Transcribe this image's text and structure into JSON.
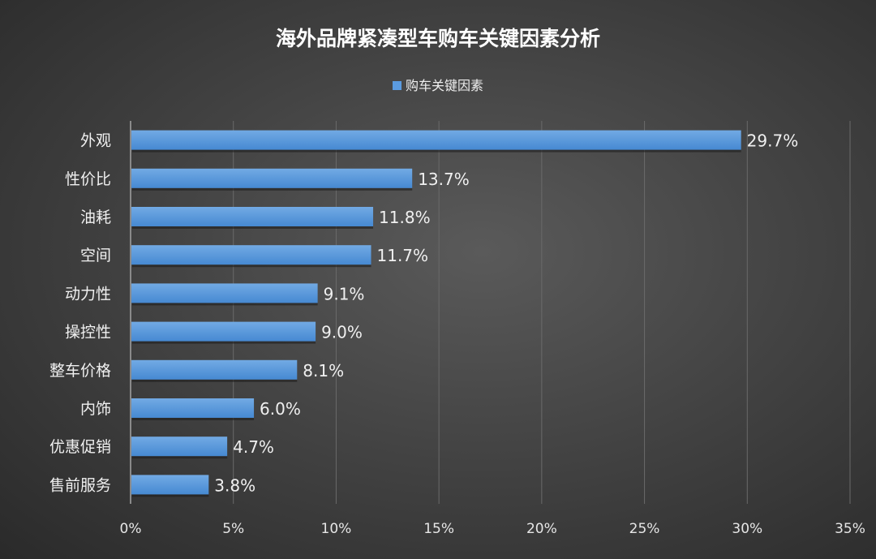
{
  "chart_data": {
    "type": "bar",
    "orientation": "horizontal",
    "title": "海外品牌紧凑型车购车关键因素分析",
    "legend": [
      "购车关键因素"
    ],
    "legend_position": "top",
    "categories": [
      "外观",
      "性价比",
      "油耗",
      "空间",
      "动力性",
      "操控性",
      "整车价格",
      "内饰",
      "优惠促销",
      "售前服务"
    ],
    "values": [
      29.7,
      13.7,
      11.8,
      11.7,
      9.1,
      9.0,
      8.1,
      6.0,
      4.7,
      3.8
    ],
    "data_labels": [
      "29.7%",
      "13.7%",
      "11.8%",
      "11.7%",
      "9.1%",
      "9.0%",
      "8.1%",
      "6.0%",
      "4.7%",
      "3.8%"
    ],
    "xticks": [
      "0%",
      "5%",
      "10%",
      "15%",
      "20%",
      "25%",
      "30%",
      "35%"
    ],
    "xlim": [
      0,
      35
    ],
    "grid": true,
    "xlabel": "",
    "ylabel": "",
    "bar_color": "#5b9be0"
  }
}
